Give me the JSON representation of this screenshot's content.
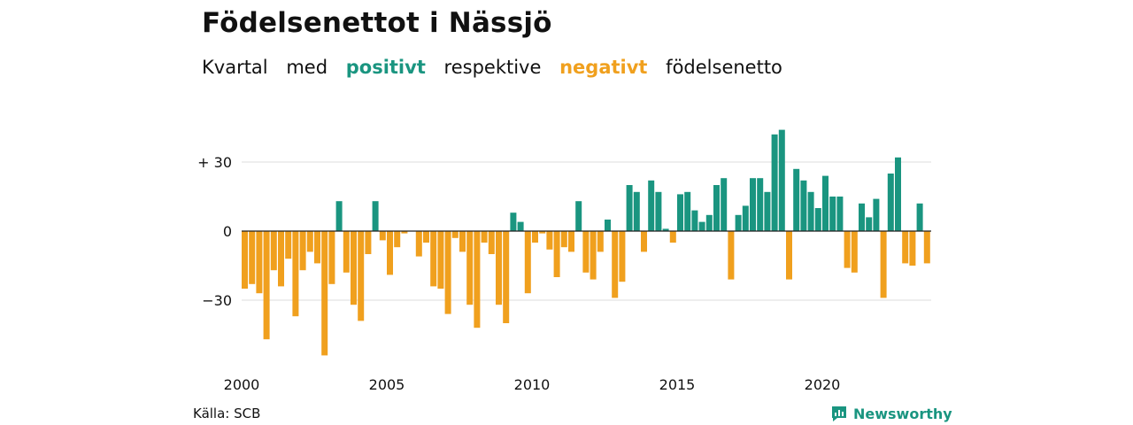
{
  "title": "Födelsenettot i Nässjö",
  "subtitle": {
    "w1": "Kvartal",
    "w2": "med",
    "positive": "positivt",
    "w3": "respektive",
    "negative": "negativt",
    "w4": "födelsenetto"
  },
  "source": "Källa: SCB",
  "brand": "Newsworthy",
  "colors": {
    "positive": "#1a9580",
    "negative": "#f0a01e",
    "text": "#111111",
    "grid": "#dcdcdc"
  },
  "chart_data": {
    "type": "bar",
    "title": "Födelsenettot i Nässjö",
    "xlabel": "",
    "ylabel": "",
    "start": "2000 Q1",
    "frequency": "quarterly",
    "x_ticks": [
      "2000",
      "2005",
      "2010",
      "2015",
      "2020"
    ],
    "y_ticks": [
      {
        "value": 30,
        "label": "+ 30"
      },
      {
        "value": 0,
        "label": "0"
      },
      {
        "value": -30,
        "label": "−30"
      }
    ],
    "ylim": [
      -55,
      45
    ],
    "grid": true,
    "values": [
      -25,
      -23,
      -27,
      -47,
      -17,
      -24,
      -12,
      -37,
      -17,
      -9,
      -14,
      -54,
      -23,
      13,
      -18,
      -32,
      -39,
      -10,
      13,
      -4,
      -19,
      -7,
      -1,
      0,
      -11,
      -5,
      -24,
      -25,
      -36,
      -3,
      -9,
      -32,
      -42,
      -5,
      -10,
      -32,
      -40,
      8,
      4,
      -27,
      -5,
      -1,
      -8,
      -20,
      -7,
      -9,
      13,
      -18,
      -21,
      -9,
      5,
      -29,
      -22,
      20,
      17,
      -9,
      22,
      17,
      1,
      -5,
      16,
      17,
      9,
      4,
      7,
      20,
      23,
      -21,
      7,
      11,
      23,
      23,
      17,
      42,
      44,
      -21,
      27,
      22,
      17,
      10,
      24,
      15,
      15,
      -16,
      -18,
      12,
      6,
      14,
      -29,
      25,
      32,
      -14,
      -15,
      12,
      -14
    ]
  }
}
